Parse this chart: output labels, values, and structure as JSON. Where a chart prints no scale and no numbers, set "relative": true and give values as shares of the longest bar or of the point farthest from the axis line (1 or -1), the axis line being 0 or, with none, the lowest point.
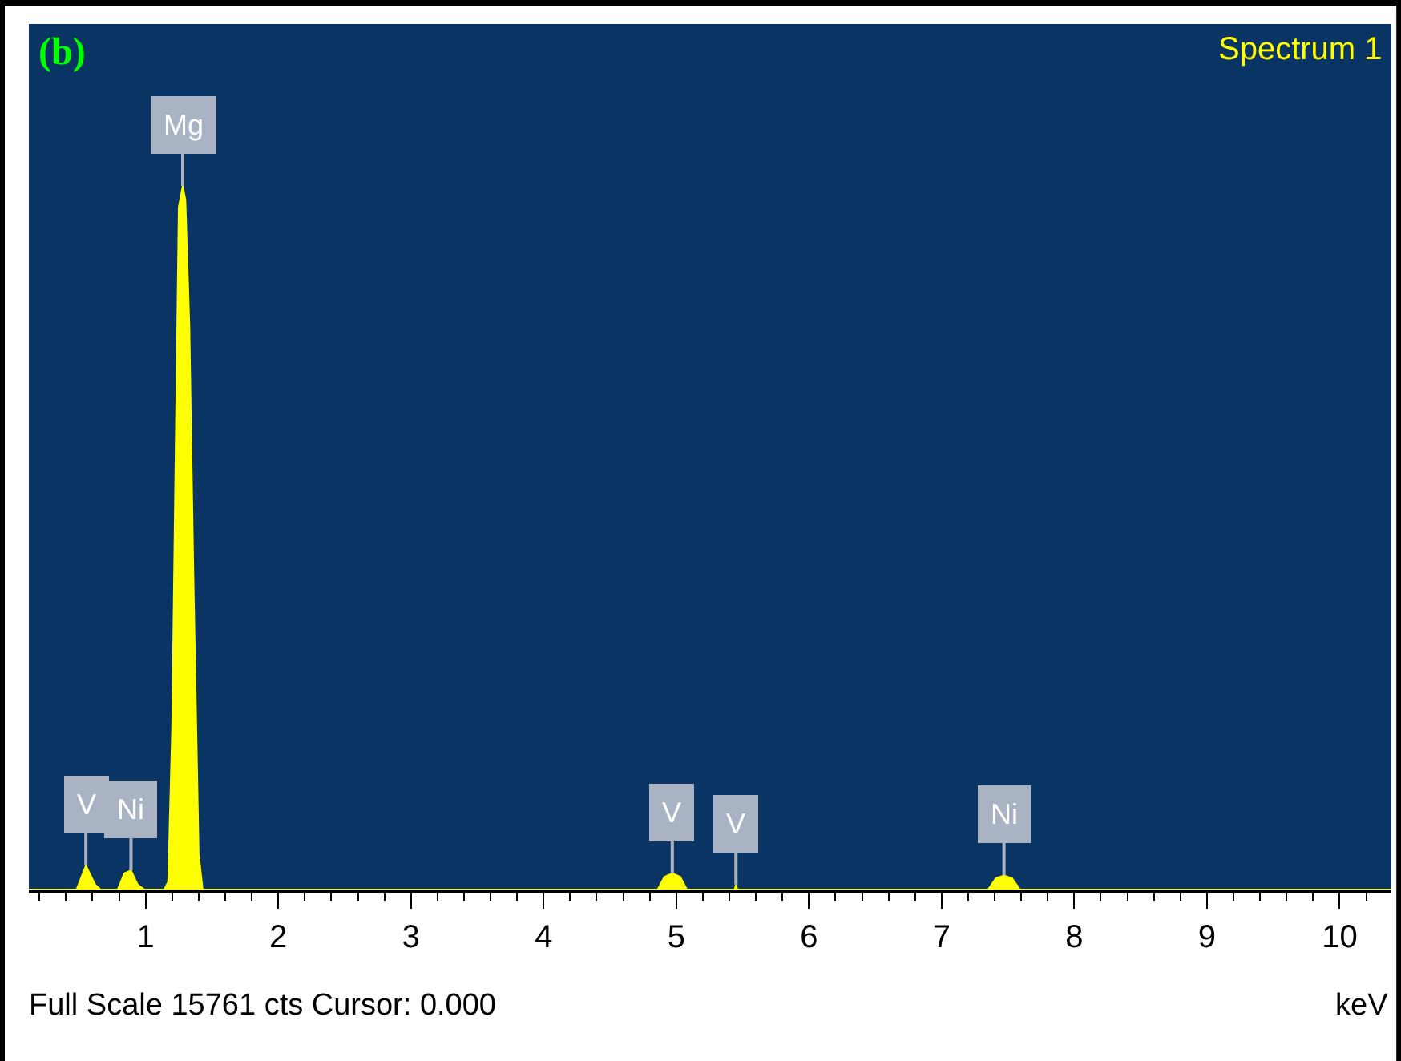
{
  "chart_data": {
    "type": "area",
    "relative": true,
    "xlabel": "keV",
    "x": [
      0.12,
      0.38,
      0.48,
      0.55,
      0.62,
      0.66,
      0.79,
      0.84,
      0.89,
      0.94,
      0.99,
      1.14,
      1.17,
      1.2,
      1.23,
      1.25,
      1.28,
      1.3,
      1.33,
      1.36,
      1.4,
      1.43,
      4.86,
      4.91,
      4.97,
      5.03,
      5.08,
      5.44,
      5.45,
      5.46,
      7.35,
      7.41,
      7.47,
      7.53,
      7.59,
      10.39
    ],
    "series": [
      {
        "color": "#ffff00",
        "values": [
          0,
          0,
          0,
          0.034,
          0.007,
          0,
          0,
          0.023,
          0.027,
          0.007,
          0,
          0,
          0.011,
          0.23,
          0.68,
          0.97,
          1.0,
          0.98,
          0.8,
          0.45,
          0.05,
          0,
          0,
          0.018,
          0.023,
          0.018,
          0,
          0,
          0.007,
          0,
          0,
          0.016,
          0.02,
          0.016,
          0,
          0
        ]
      }
    ],
    "xlim": [
      0.12,
      10.39
    ],
    "xticks": [
      1,
      2,
      3,
      4,
      5,
      6,
      7,
      8,
      9,
      10
    ],
    "grid": false,
    "annotations": [
      "(b)",
      "Spectrum 1",
      "Full Scale 15761 cts Cursor: 0.000",
      {
        "text": "V",
        "x": 0.55,
        "y": 0.034
      },
      {
        "text": "Ni",
        "x": 0.89,
        "y": 0.027
      },
      {
        "text": "Mg",
        "x": 1.28,
        "y": 1.0
      },
      {
        "text": "V",
        "x": 4.97,
        "y": 0.023
      },
      {
        "text": "V",
        "x": 5.45,
        "y": 0.007
      },
      {
        "text": "Ni",
        "x": 7.47,
        "y": 0.02
      }
    ]
  }
}
